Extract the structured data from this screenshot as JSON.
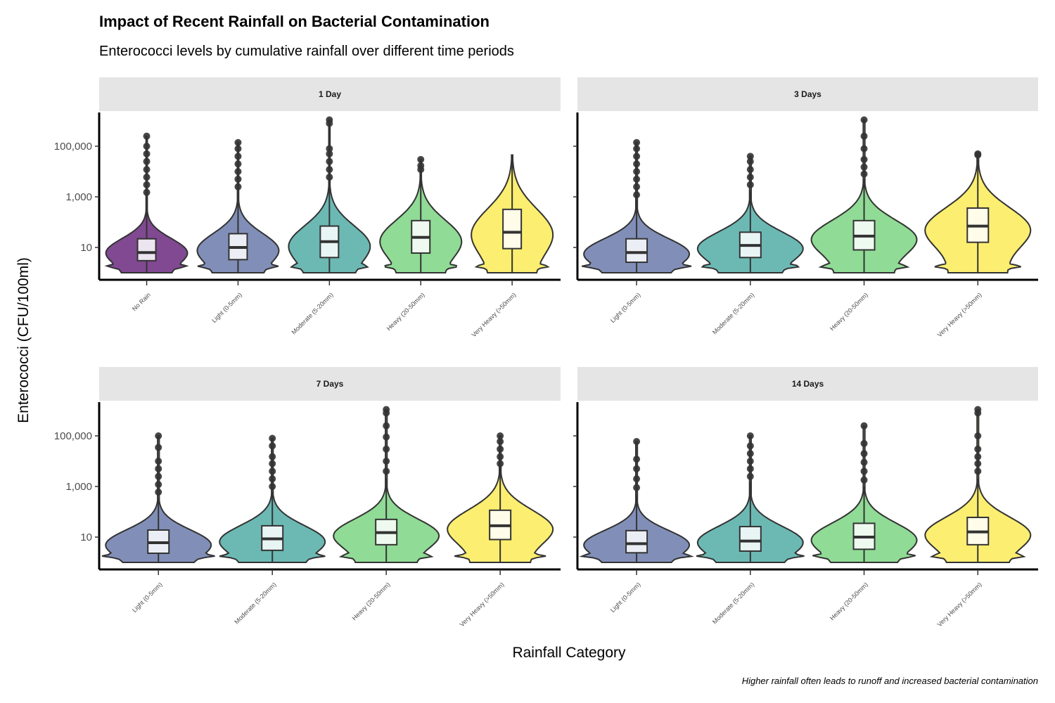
{
  "title": "Impact of Recent Rainfall on Bacterial Contamination",
  "subtitle": "Enterococci levels by cumulative rainfall over different time periods",
  "caption": "Higher rainfall often leads to runoff and increased bacterial contamination",
  "colors": {
    "No Rain": "#7a3f8c",
    "Light (0-5mm)": "#7a89b4",
    "Moderate (5-20mm)": "#64b5b0",
    "Heavy (20-50mm)": "#8ad98f",
    "Very Heavy (>50mm)": "#fced68",
    "strip_bg": "#e5e5e5",
    "outline": "#333333"
  },
  "chart_data": {
    "type": "violin",
    "xlabel": "Rainfall Category",
    "ylabel": "Enterococci (CFU/100ml)",
    "y_scale": "log10",
    "y_ticks": [
      10,
      1000,
      100000
    ],
    "y_tick_labels": [
      "10",
      "1,000",
      "100,000"
    ],
    "ylim": [
      1,
      120000000
    ],
    "panels": [
      {
        "name": "1 Day",
        "categories": [
          {
            "label": "No Rain",
            "min": 1,
            "q1": 3,
            "median": 6.3,
            "q3": 22,
            "upper_whisker": 720,
            "outliers": [
              1500,
              3000,
              6000,
              12000,
              25000,
              50000,
              100000,
              250000
            ]
          },
          {
            "label": "Light (0-5mm)",
            "min": 1,
            "q1": 3.3,
            "median": 10,
            "q3": 35,
            "upper_whisker": 1500,
            "outliers": [
              2500,
              5000,
              10000,
              20000,
              40000,
              80000,
              140000
            ]
          },
          {
            "label": "Moderate (5-20mm)",
            "min": 1,
            "q1": 4,
            "median": 17,
            "q3": 70,
            "upper_whisker": 4000,
            "outliers": [
              6000,
              12000,
              25000,
              50000,
              80000,
              800000,
              1100000
            ]
          },
          {
            "label": "Heavy (20-50mm)",
            "min": 1,
            "q1": 6,
            "median": 25,
            "q3": 115,
            "upper_whisker": 8000,
            "outliers": [
              12000,
              17000,
              30000
            ]
          },
          {
            "label": "Very Heavy (>50mm)",
            "min": 1,
            "q1": 9,
            "median": 40,
            "q3": 320,
            "upper_whisker": 45000,
            "outliers": []
          }
        ]
      },
      {
        "name": "3 Days",
        "categories": [
          {
            "label": "Light (0-5mm)",
            "min": 1,
            "q1": 2.6,
            "median": 6.3,
            "q3": 22,
            "upper_whisker": 700,
            "outliers": [
              1200,
              2500,
              5000,
              10000,
              20000,
              40000,
              80000,
              140000
            ]
          },
          {
            "label": "Moderate (5-20mm)",
            "min": 1,
            "q1": 4,
            "median": 12,
            "q3": 40,
            "upper_whisker": 1800,
            "outliers": [
              3000,
              6000,
              12000,
              25000,
              40000
            ]
          },
          {
            "label": "Heavy (20-50mm)",
            "min": 1,
            "q1": 8,
            "median": 28,
            "q3": 115,
            "upper_whisker": 5000,
            "outliers": [
              8000,
              15000,
              30000,
              80000,
              250000,
              1100000
            ]
          },
          {
            "label": "Very Heavy (>50mm)",
            "min": 1,
            "q1": 16,
            "median": 70,
            "q3": 360,
            "upper_whisker": 30000,
            "outliers": [
              45000,
              50000
            ]
          }
        ]
      },
      {
        "name": "7 Days",
        "categories": [
          {
            "label": "Light (0-5mm)",
            "min": 1,
            "q1": 2.3,
            "median": 6,
            "q3": 19,
            "upper_whisker": 330,
            "outliers": [
              600,
              1200,
              2500,
              5000,
              10000,
              35000,
              100000
            ]
          },
          {
            "label": "Moderate (5-20mm)",
            "min": 1,
            "q1": 3,
            "median": 8.5,
            "q3": 28,
            "upper_whisker": 600,
            "outliers": [
              1000,
              2000,
              4000,
              8000,
              15000,
              40000,
              80000
            ]
          },
          {
            "label": "Heavy (20-50mm)",
            "min": 1,
            "q1": 5,
            "median": 15,
            "q3": 50,
            "upper_whisker": 2000,
            "outliers": [
              4000,
              10000,
              30000,
              90000,
              250000,
              800000,
              1100000
            ]
          },
          {
            "label": "Very Heavy (>50mm)",
            "min": 1,
            "q1": 8,
            "median": 28,
            "q3": 115,
            "upper_whisker": 6000,
            "outliers": [
              8000,
              15000,
              30000,
              60000,
              100000
            ]
          }
        ]
      },
      {
        "name": "14 Days",
        "categories": [
          {
            "label": "Light (0-5mm)",
            "min": 1,
            "q1": 2.4,
            "median": 5.5,
            "q3": 18,
            "upper_whisker": 450,
            "outliers": [
              900,
              2000,
              5000,
              12000,
              60000
            ]
          },
          {
            "label": "Moderate (5-20mm)",
            "min": 1,
            "q1": 2.8,
            "median": 7,
            "q3": 26,
            "upper_whisker": 1500,
            "outliers": [
              2500,
              5000,
              10000,
              20000,
              40000,
              100000
            ]
          },
          {
            "label": "Heavy (20-50mm)",
            "min": 1,
            "q1": 3.3,
            "median": 10,
            "q3": 35,
            "upper_whisker": 1000,
            "outliers": [
              1800,
              4000,
              9000,
              20000,
              50000,
              250000
            ]
          },
          {
            "label": "Very Heavy (>50mm)",
            "min": 1,
            "q1": 5,
            "median": 16,
            "q3": 60,
            "upper_whisker": 2000,
            "outliers": [
              4000,
              8000,
              15000,
              30000,
              100000,
              800000,
              1100000
            ]
          }
        ]
      }
    ]
  }
}
